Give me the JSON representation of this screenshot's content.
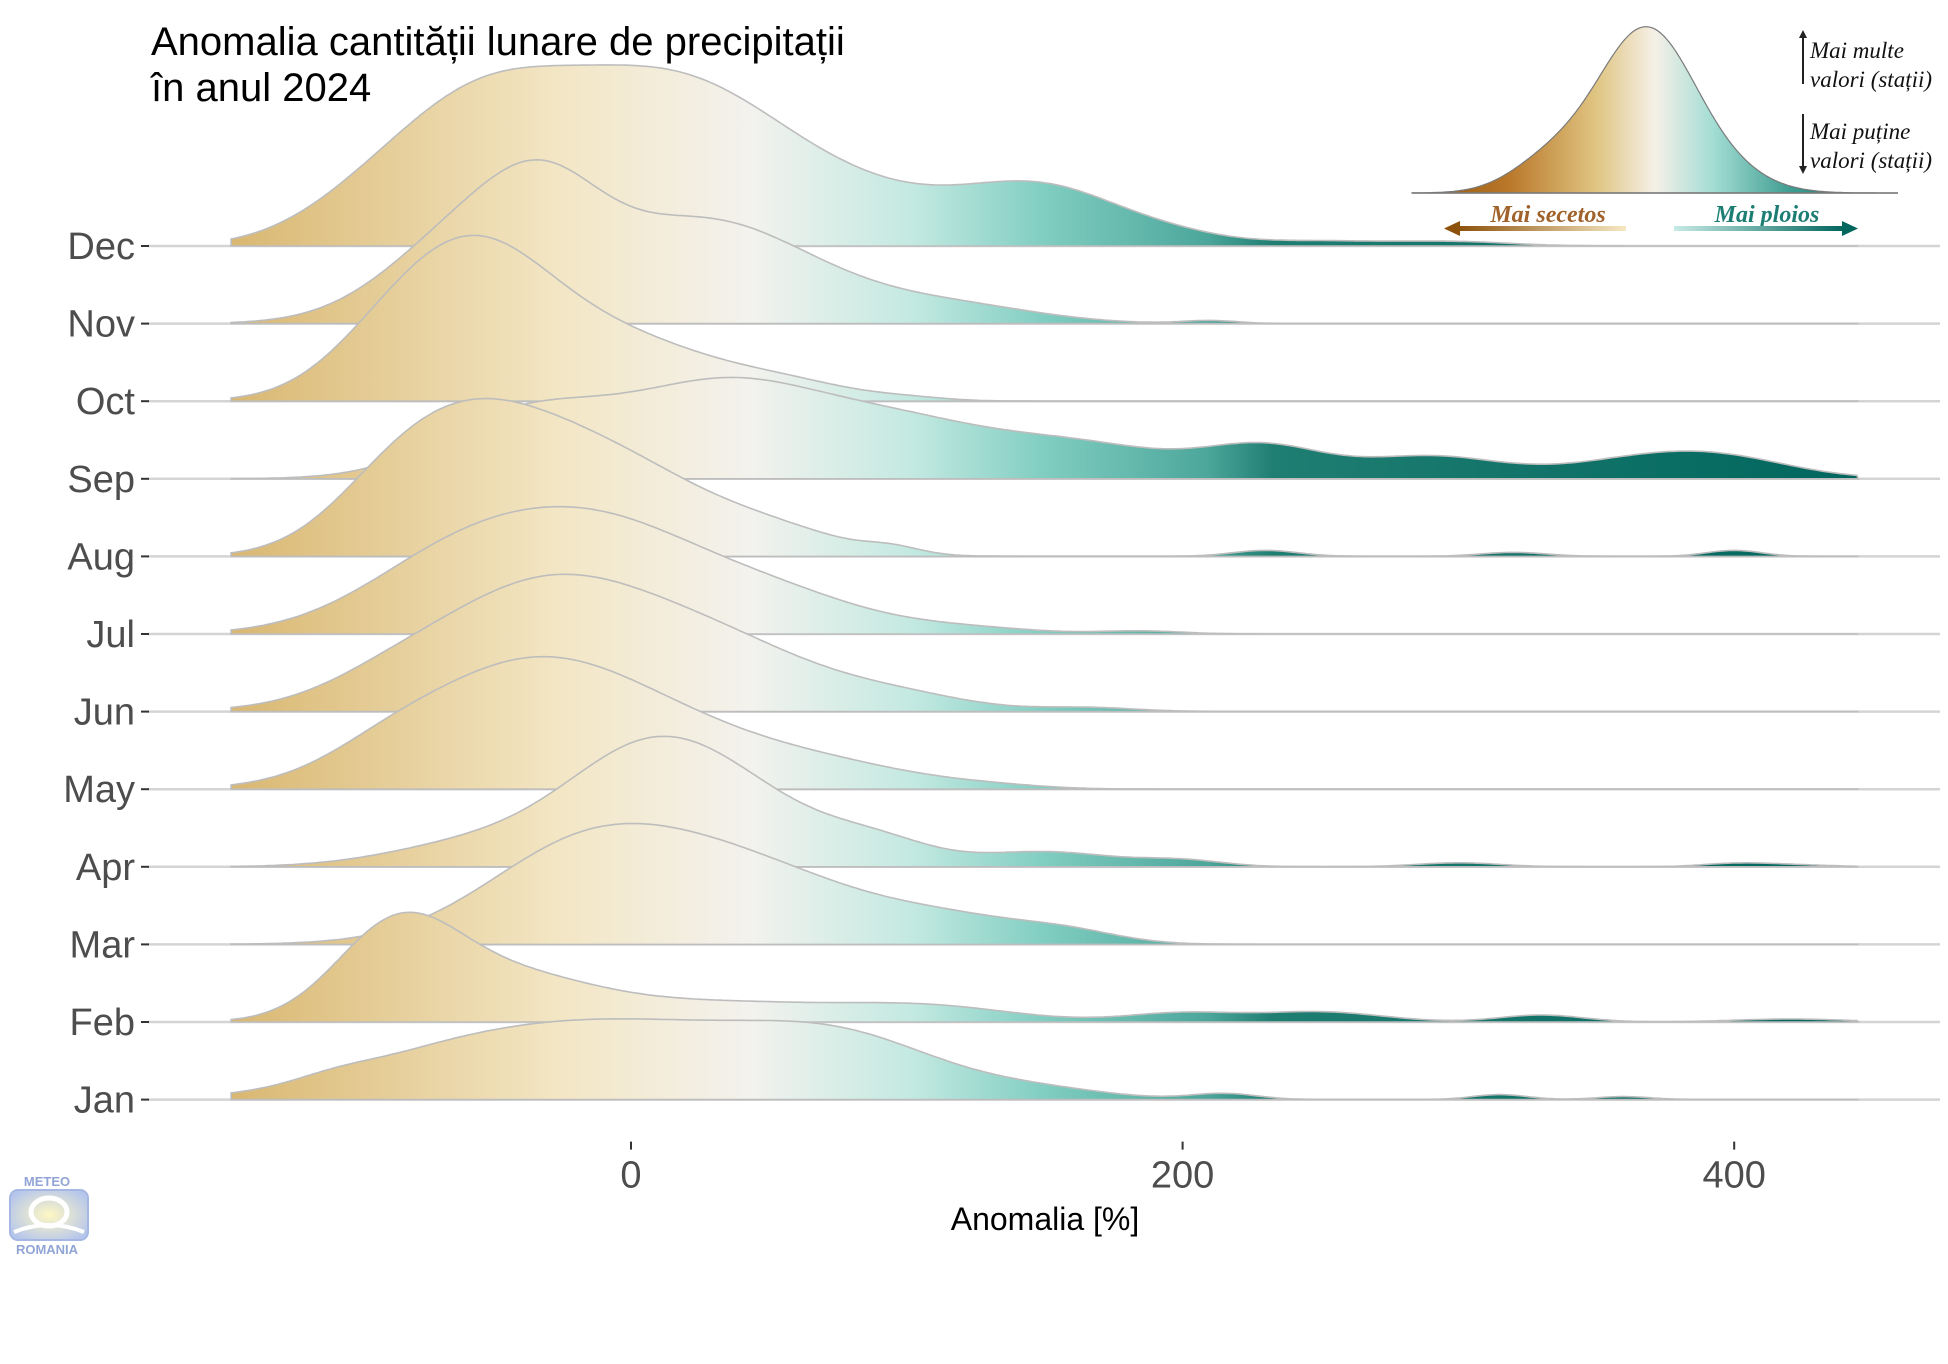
{
  "title": {
    "line1": "Anomalia cantității lunare de precipitații",
    "line2": "în anul 2024"
  },
  "legend": {
    "more_values": [
      "Mai multe",
      "valori (stații)"
    ],
    "fewer_values": [
      "Mai puține",
      "valori (stații)"
    ],
    "drier": "Mai secetos",
    "wetter": "Mai ploios"
  },
  "logo": {
    "top": "METEO",
    "bottom": "ROMANIA"
  },
  "colors": {
    "dry_dark": "#8c510a",
    "dry_mid": "#d9b771",
    "dry_light": "#f3e6c4",
    "neutral": "#f3f2ee",
    "wet_light": "#c2e9e1",
    "wet_mid": "#80cdc1",
    "wet_dark": "#01665e",
    "ridge_outline": "#bdbdbd",
    "baseline": "#d4d4d4"
  },
  "chart_data": {
    "type": "ridgeline",
    "xlabel": "Anomalia [%]",
    "ylabel": "",
    "x_ticks": [
      0,
      200,
      400
    ],
    "xlim": [
      -145,
      445
    ],
    "categories": [
      "Jan",
      "Feb",
      "Mar",
      "Apr",
      "May",
      "Jun",
      "Jul",
      "Aug",
      "Sep",
      "Oct",
      "Nov",
      "Dec"
    ],
    "series": [
      {
        "name": "Jan",
        "peaks": [
          [
            -108,
            5,
            14
          ],
          [
            -70,
            25,
            40
          ],
          [
            0,
            72,
            55
          ],
          [
            80,
            45,
            35
          ],
          [
            150,
            8,
            25
          ],
          [
            215,
            6,
            12
          ],
          [
            315,
            5,
            10
          ],
          [
            360,
            3,
            10
          ]
        ]
      },
      {
        "name": "Feb",
        "peaks": [
          [
            -85,
            90,
            22
          ],
          [
            -45,
            40,
            30
          ],
          [
            30,
            20,
            50
          ],
          [
            110,
            12,
            30
          ],
          [
            200,
            9,
            20
          ],
          [
            250,
            10,
            22
          ],
          [
            330,
            7,
            15
          ],
          [
            420,
            3,
            20
          ]
        ]
      },
      {
        "name": "Mar",
        "peaks": [
          [
            -30,
            20,
            30
          ],
          [
            0,
            100,
            42
          ],
          [
            60,
            38,
            35
          ],
          [
            120,
            22,
            30
          ],
          [
            160,
            8,
            18
          ]
        ]
      },
      {
        "name": "Apr",
        "peaks": [
          [
            -60,
            20,
            30
          ],
          [
            10,
            125,
            33
          ],
          [
            55,
            20,
            25
          ],
          [
            90,
            22,
            20
          ],
          [
            150,
            15,
            25
          ],
          [
            200,
            6,
            15
          ],
          [
            300,
            4,
            15
          ],
          [
            400,
            3,
            12
          ],
          [
            420,
            2,
            15
          ]
        ]
      },
      {
        "name": "May",
        "peaks": [
          [
            -90,
            15,
            22
          ],
          [
            -40,
            115,
            40
          ],
          [
            20,
            45,
            40
          ],
          [
            80,
            14,
            30
          ],
          [
            130,
            3,
            20
          ]
        ]
      },
      {
        "name": "Jun",
        "peaks": [
          [
            -90,
            10,
            22
          ],
          [
            -30,
            130,
            43
          ],
          [
            40,
            45,
            35
          ],
          [
            100,
            12,
            25
          ],
          [
            165,
            4,
            18
          ]
        ]
      },
      {
        "name": "Jul",
        "peaks": [
          [
            -70,
            40,
            32
          ],
          [
            -15,
            115,
            44
          ],
          [
            60,
            22,
            30
          ],
          [
            120,
            6,
            25
          ],
          [
            185,
            3,
            15
          ]
        ]
      },
      {
        "name": "Aug",
        "peaks": [
          [
            -90,
            25,
            22
          ],
          [
            -62,
            110,
            30
          ],
          [
            -10,
            95,
            36
          ],
          [
            55,
            18,
            25
          ],
          [
            95,
            6,
            10
          ],
          [
            230,
            6,
            12
          ],
          [
            320,
            4,
            12
          ],
          [
            400,
            6,
            10
          ]
        ]
      },
      {
        "name": "Sep",
        "peaks": [
          [
            -40,
            60,
            30
          ],
          [
            35,
            95,
            38
          ],
          [
            100,
            38,
            30
          ],
          [
            160,
            35,
            35
          ],
          [
            230,
            30,
            22
          ],
          [
            290,
            22,
            25
          ],
          [
            370,
            20,
            30
          ],
          [
            400,
            12,
            25
          ]
        ]
      },
      {
        "name": "Oct",
        "peaks": [
          [
            -95,
            12,
            20
          ],
          [
            -60,
            150,
            30
          ],
          [
            0,
            55,
            35
          ],
          [
            60,
            12,
            22
          ],
          [
            100,
            3,
            15
          ]
        ]
      },
      {
        "name": "Nov",
        "peaks": [
          [
            -55,
            100,
            30
          ],
          [
            -30,
            60,
            20
          ],
          [
            20,
            85,
            35
          ],
          [
            60,
            30,
            35
          ],
          [
            120,
            15,
            30
          ],
          [
            210,
            3,
            10
          ]
        ]
      },
      {
        "name": "Dec",
        "peaks": [
          [
            -100,
            25,
            25
          ],
          [
            -60,
            110,
            30
          ],
          [
            -10,
            120,
            35
          ],
          [
            30,
            62,
            30
          ],
          [
            70,
            60,
            40
          ],
          [
            150,
            55,
            30
          ],
          [
            200,
            5,
            18
          ],
          [
            250,
            5,
            25
          ],
          [
            300,
            4,
            20
          ]
        ]
      }
    ]
  }
}
